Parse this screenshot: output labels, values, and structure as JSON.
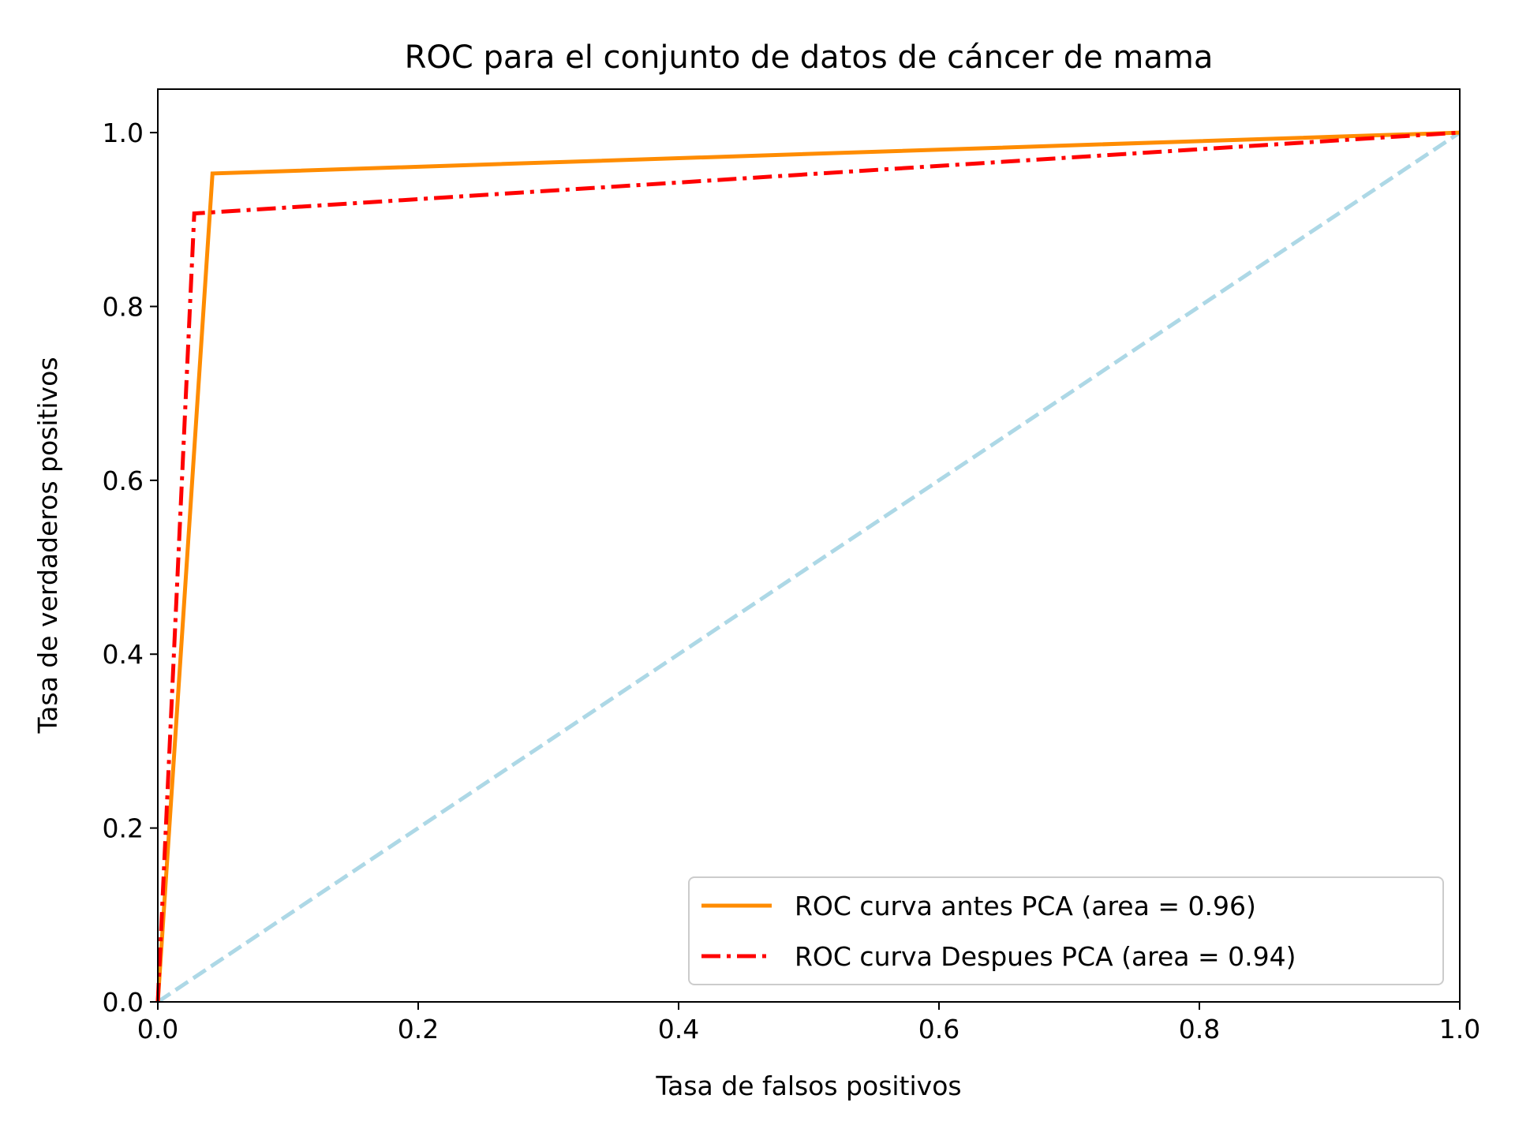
{
  "chart_data": {
    "type": "line",
    "title": "ROC para el conjunto de datos de cáncer de mama",
    "xlabel": "Tasa de falsos positivos",
    "ylabel": "Tasa de verdaderos positivos",
    "xlim": [
      0.0,
      1.0
    ],
    "ylim": [
      0.0,
      1.05
    ],
    "xticks": [
      "0.0",
      "0.2",
      "0.4",
      "0.6",
      "0.8",
      "1.0"
    ],
    "yticks": [
      "0.0",
      "0.2",
      "0.4",
      "0.6",
      "0.8",
      "1.0"
    ],
    "legend_position": "lower-right",
    "grid": false,
    "series": [
      {
        "name": "ROC curva antes PCA (area = 0.96)",
        "color": "#ff8c00",
        "style": "solid",
        "x": [
          0.0,
          0.042,
          1.0
        ],
        "y": [
          0.0,
          0.953,
          1.0
        ]
      },
      {
        "name": "ROC curva Despues PCA (area = 0.94)",
        "color": "#ff0000",
        "style": "dashdot",
        "x": [
          0.0,
          0.028,
          1.0
        ],
        "y": [
          0.0,
          0.907,
          1.0
        ]
      },
      {
        "name": "",
        "color": "#add8e6",
        "style": "dashed",
        "x": [
          0.0,
          1.0
        ],
        "y": [
          0.0,
          1.0
        ]
      }
    ]
  }
}
